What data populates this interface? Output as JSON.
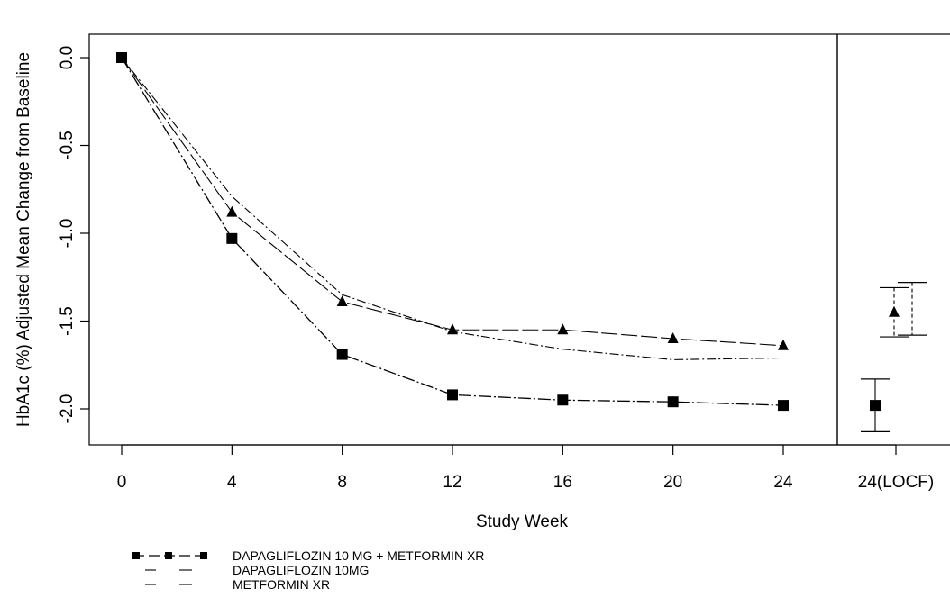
{
  "chart_data": {
    "type": "line",
    "xlabel": "Study Week",
    "ylabel": "HbA1c (%) Adjusted Mean Change from Baseline",
    "x": [
      0,
      4,
      8,
      12,
      16,
      20,
      24
    ],
    "x_tick_labels": [
      "0",
      "4",
      "8",
      "12",
      "16",
      "20",
      "24"
    ],
    "extra_x_tick_label": "24(LOCF)",
    "y_ticks": [
      0.0,
      -0.5,
      -1.0,
      -1.5,
      -2.0
    ],
    "y_tick_labels": [
      "0.0",
      "-0.5",
      "-1.0",
      "-1.5",
      "-2.0"
    ],
    "ylim": [
      -2.22,
      0.12
    ],
    "xlim": [
      -0.9,
      26.0
    ],
    "grid": false,
    "legend_position": "bottom-left",
    "series": [
      {
        "name": "DAPAGLIFLOZIN 10 MG + METFORMIN XR",
        "marker": "square",
        "values": [
          0.0,
          -1.03,
          -1.69,
          -1.92,
          -1.95,
          -1.96,
          -1.98
        ],
        "locf": {
          "value": -1.98,
          "lower": -2.13,
          "upper": -1.83
        }
      },
      {
        "name": "DAPAGLIFLOZIN 10MG",
        "marker": "triangle",
        "values": [
          0.0,
          -0.88,
          -1.39,
          -1.55,
          -1.55,
          -1.6,
          -1.64
        ],
        "locf": {
          "value": -1.45,
          "lower": -1.59,
          "upper": -1.31
        }
      },
      {
        "name": "METFORMIN XR",
        "marker": "none",
        "values": [
          0.0,
          -0.79,
          -1.35,
          -1.56,
          -1.66,
          -1.72,
          -1.71
        ],
        "locf": {
          "value": -1.43,
          "lower": -1.58,
          "upper": -1.28
        }
      }
    ]
  }
}
